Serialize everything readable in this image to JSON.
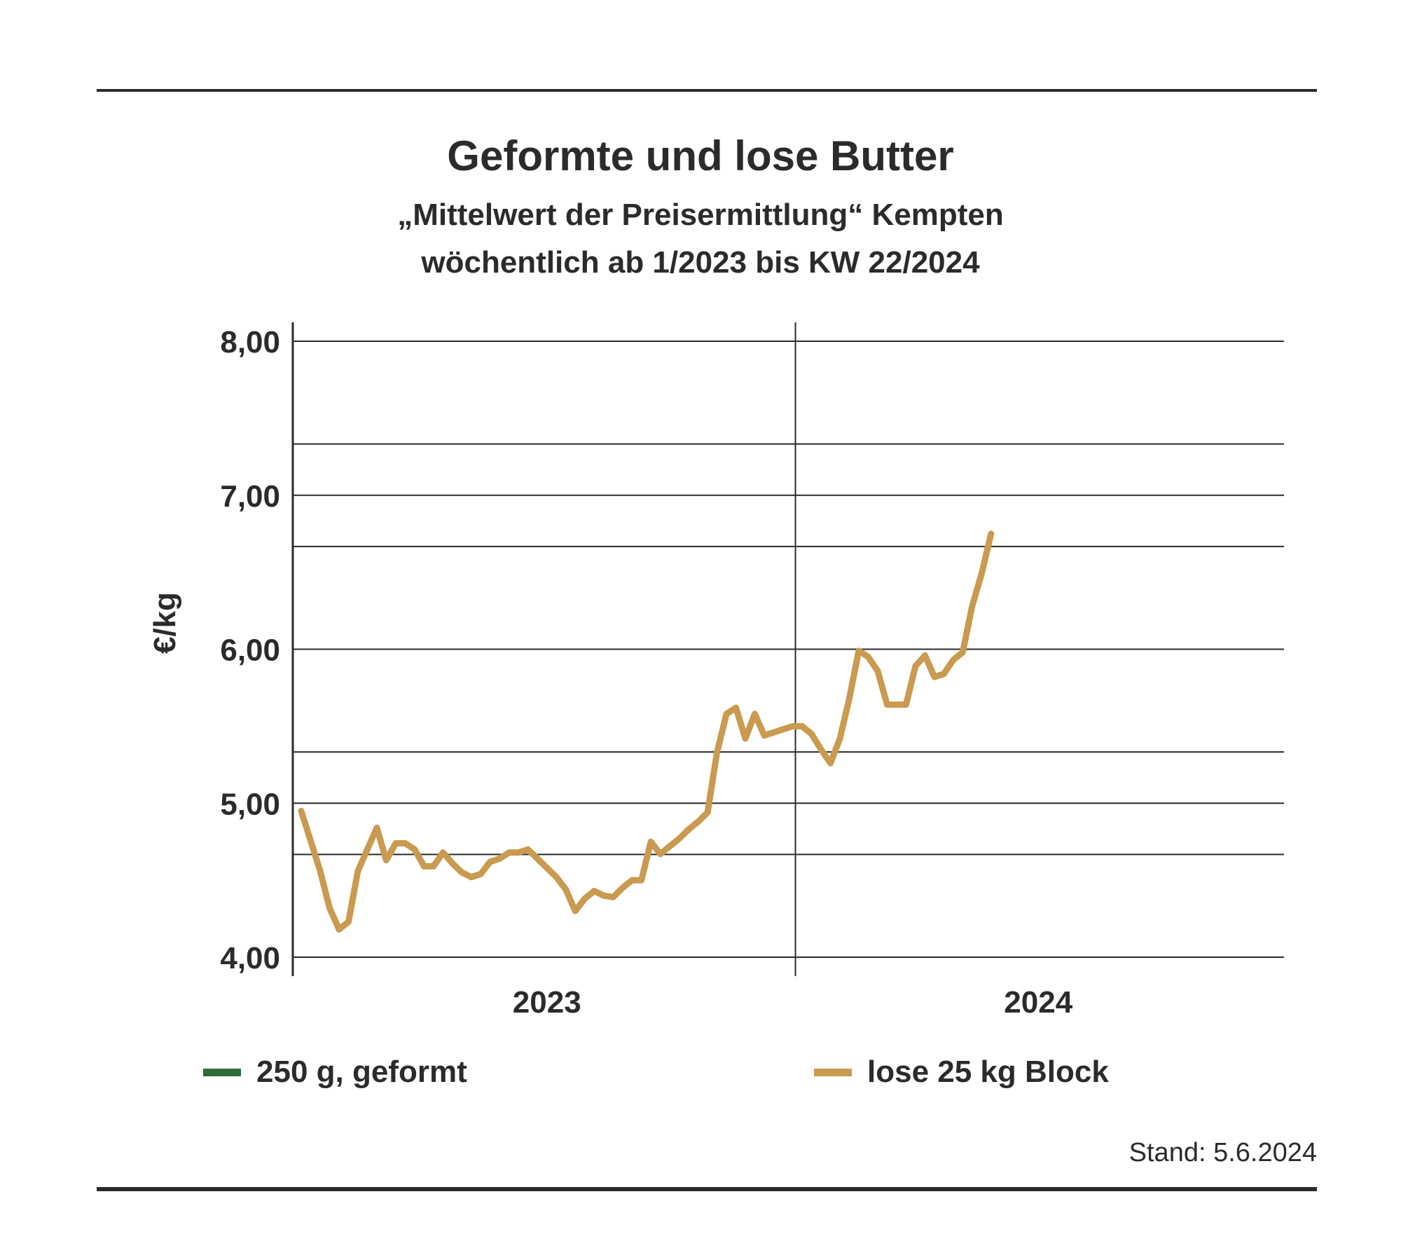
{
  "header": {
    "title": "Geformte und lose Butter",
    "subtitle_line1": "„Mittelwert der Preisermittlung“ Kempten",
    "subtitle_line2": "wöchentlich ab 1/2023 bis KW 22/2024"
  },
  "footer": {
    "stand": "Stand:  5.6.2024"
  },
  "colors": {
    "geformt": "#2e6b3a",
    "lose": "#c99a4f",
    "axis": "#2b2b2b"
  },
  "chart_data": {
    "type": "line",
    "title": "Geformte und lose Butter",
    "ylabel": "€/kg",
    "xlabel": "",
    "ylim": [
      4.0,
      8.0
    ],
    "yticks": [
      {
        "value": 4.0,
        "label": "4,00"
      },
      {
        "value": 5.0,
        "label": "5,00"
      },
      {
        "value": 6.0,
        "label": "6,00"
      },
      {
        "value": 7.0,
        "label": "7,00"
      },
      {
        "value": 8.0,
        "label": "8,00"
      }
    ],
    "minor_gridlines": [
      4.667,
      5.333,
      6.667,
      7.333
    ],
    "xlim": [
      1,
      105
    ],
    "x_unit": "week index from KW 1/2023",
    "year_labels": [
      {
        "label": "2023",
        "center_week": 27
      },
      {
        "label": "2024",
        "center_week": 79
      }
    ],
    "year_boundary_week": 53,
    "grid": true,
    "legend_position": "bottom",
    "series": [
      {
        "name": "250 g, geformt",
        "color": "#2e6b3a",
        "values": []
      },
      {
        "name": "lose 25 kg Block",
        "color": "#c99a4f",
        "points": [
          [
            1,
            4.95
          ],
          [
            3,
            4.56
          ],
          [
            4,
            4.32
          ],
          [
            5,
            4.18
          ],
          [
            6,
            4.23
          ],
          [
            7,
            4.56
          ],
          [
            8,
            4.7
          ],
          [
            9,
            4.84
          ],
          [
            10,
            4.63
          ],
          [
            11,
            4.74
          ],
          [
            12,
            4.74
          ],
          [
            13,
            4.7
          ],
          [
            14,
            4.59
          ],
          [
            15,
            4.59
          ],
          [
            16,
            4.68
          ],
          [
            17,
            4.61
          ],
          [
            18,
            4.55
          ],
          [
            19,
            4.52
          ],
          [
            20,
            4.54
          ],
          [
            21,
            4.62
          ],
          [
            22,
            4.64
          ],
          [
            23,
            4.68
          ],
          [
            24,
            4.68
          ],
          [
            25,
            4.7
          ],
          [
            26,
            4.64
          ],
          [
            27,
            4.58
          ],
          [
            28,
            4.52
          ],
          [
            29,
            4.44
          ],
          [
            30,
            4.3
          ],
          [
            31,
            4.38
          ],
          [
            32,
            4.43
          ],
          [
            33,
            4.4
          ],
          [
            34,
            4.39
          ],
          [
            35,
            4.45
          ],
          [
            36,
            4.5
          ],
          [
            37,
            4.5
          ],
          [
            38,
            4.75
          ],
          [
            39,
            4.67
          ],
          [
            40,
            4.72
          ],
          [
            41,
            4.77
          ],
          [
            42,
            4.83
          ],
          [
            43,
            4.88
          ],
          [
            44,
            4.94
          ],
          [
            45,
            5.33
          ],
          [
            46,
            5.58
          ],
          [
            47,
            5.62
          ],
          [
            48,
            5.42
          ],
          [
            49,
            5.58
          ],
          [
            50,
            5.44
          ],
          [
            51,
            5.46
          ],
          [
            52,
            5.48
          ],
          [
            53,
            5.5
          ],
          [
            54,
            5.5
          ],
          [
            55,
            5.45
          ],
          [
            56,
            5.35
          ],
          [
            57,
            5.26
          ],
          [
            58,
            5.42
          ],
          [
            59,
            5.68
          ],
          [
            60,
            5.99
          ],
          [
            61,
            5.95
          ],
          [
            62,
            5.86
          ],
          [
            63,
            5.64
          ],
          [
            64,
            5.64
          ],
          [
            65,
            5.64
          ],
          [
            66,
            5.89
          ],
          [
            67,
            5.96
          ],
          [
            68,
            5.82
          ],
          [
            69,
            5.84
          ],
          [
            70,
            5.93
          ],
          [
            71,
            5.98
          ],
          [
            72,
            6.28
          ],
          [
            73,
            6.49
          ],
          [
            74,
            6.75
          ]
        ]
      }
    ]
  }
}
